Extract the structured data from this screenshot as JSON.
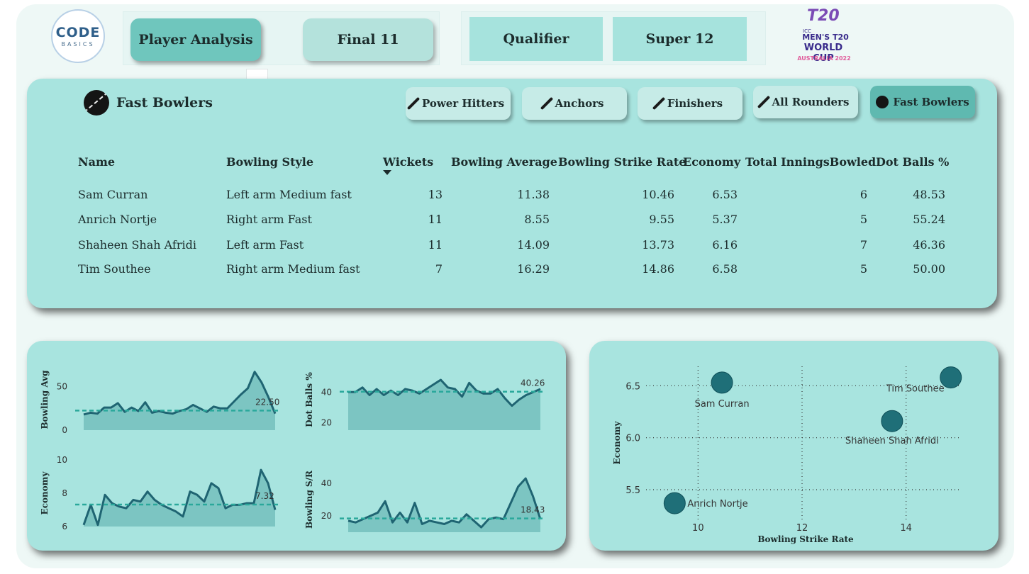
{
  "header": {
    "logo_main": "CODE",
    "logo_sub": "BASICS",
    "nav": [
      "Player Analysis",
      "Final 11",
      "Qualifier",
      "Super 12"
    ],
    "more_glyph": "…",
    "event_logo": {
      "line_t20": "T20",
      "line_icc": "ICC",
      "line1": "MEN'S T20",
      "line2": "WORLD CUP",
      "line3": "AUSTRALIA 2022"
    }
  },
  "panel": {
    "title": "Fast Bowlers",
    "title_icon": "cricket-ball-icon",
    "categories": [
      {
        "label": "Power Hitters",
        "icon": "cricket-bat-icon",
        "active": false
      },
      {
        "label": "Anchors",
        "icon": "cricket-bat-icon",
        "active": false
      },
      {
        "label": "Finishers",
        "icon": "cricket-bat-icon",
        "active": false
      },
      {
        "label": "All Rounders",
        "icon": "cricket-bat-icon",
        "active": false
      },
      {
        "label": "Fast Bowlers",
        "icon": "cricket-ball-icon",
        "active": true
      }
    ]
  },
  "table": {
    "columns": [
      "Name",
      "Bowling Style",
      "Wickets",
      "Bowling Average",
      "Bowling Strike Rate",
      "Economy",
      "Total InningsBowled",
      "Dot Balls %"
    ],
    "sorted_by": "Wickets",
    "rows": [
      [
        "Sam Curran",
        "Left arm Medium fast",
        "13",
        "11.38",
        "10.46",
        "6.53",
        "6",
        "48.53"
      ],
      [
        "Anrich Nortje",
        "Right arm Fast",
        "11",
        "8.55",
        "9.55",
        "5.37",
        "5",
        "55.24"
      ],
      [
        "Shaheen Shah Afridi",
        "Left arm Fast",
        "11",
        "14.09",
        "13.73",
        "6.16",
        "7",
        "46.36"
      ],
      [
        "Tim Southee",
        "Right arm Medium fast",
        "7",
        "16.29",
        "14.86",
        "6.58",
        "5",
        "50.00"
      ]
    ]
  },
  "chart_data": [
    {
      "type": "area",
      "ylabel": "Bowling Avg",
      "ylim": [
        0,
        70
      ],
      "yticks": [
        0,
        50
      ],
      "avg_label": "22.50",
      "avg": 22.5,
      "values": [
        18,
        20,
        19,
        26,
        26,
        31,
        21,
        26,
        22,
        32,
        20,
        22,
        20,
        19,
        22,
        24,
        29,
        25,
        21,
        27,
        25,
        25,
        33,
        41,
        48,
        67,
        55,
        38,
        19
      ]
    },
    {
      "type": "area",
      "ylabel": "Dot Balls %",
      "ylim": [
        15,
        55
      ],
      "yticks": [
        20,
        40
      ],
      "avg_label": "40.26",
      "avg": 40.26,
      "values": [
        40,
        40,
        43,
        38,
        42,
        38,
        41,
        38,
        42,
        41,
        39,
        42,
        45,
        48,
        43,
        42,
        37,
        46,
        41,
        39,
        39,
        42,
        36,
        31,
        35,
        38,
        40,
        42
      ]
    },
    {
      "type": "area",
      "ylabel": "Economy",
      "ylim": [
        6,
        10
      ],
      "yticks": [
        6,
        8,
        10
      ],
      "avg_label": "7.32",
      "avg": 7.32,
      "values": [
        6.1,
        7.3,
        6.1,
        7.9,
        7.4,
        7.2,
        7.1,
        7.6,
        7.5,
        8.1,
        7.6,
        7.3,
        7.1,
        6.9,
        6.6,
        8.1,
        7.9,
        7.5,
        8.6,
        8.3,
        7.1,
        7.3,
        7.3,
        7.4,
        7.4,
        9.4,
        8.6,
        7.0
      ]
    },
    {
      "type": "area",
      "ylabel": "Bowling S/R",
      "ylim": [
        10,
        50
      ],
      "yticks": [
        20,
        40
      ],
      "avg_label": "18.43",
      "avg": 18.43,
      "values": [
        17,
        16,
        18,
        20,
        22,
        29,
        16,
        22,
        16,
        28,
        15,
        17,
        16,
        15,
        17,
        16,
        21,
        17,
        13,
        18,
        19,
        18,
        28,
        38,
        43,
        32,
        18
      ]
    },
    {
      "type": "scatter",
      "xlabel": "Bowling Strike Rate",
      "ylabel": "Economy",
      "xlim": [
        9,
        15
      ],
      "ylim": [
        5.2,
        6.7
      ],
      "xticks": [
        10,
        12,
        14
      ],
      "yticks": [
        5.5,
        6.0,
        6.5
      ],
      "points": [
        {
          "label": "Sam Curran",
          "x": 10.46,
          "y": 6.53
        },
        {
          "label": "Anrich Nortje",
          "x": 9.55,
          "y": 5.37
        },
        {
          "label": "Shaheen Shah Afridi",
          "x": 13.73,
          "y": 6.16
        },
        {
          "label": "Tim Southee",
          "x": 14.86,
          "y": 6.58
        }
      ],
      "color": "#1f6f78"
    }
  ]
}
